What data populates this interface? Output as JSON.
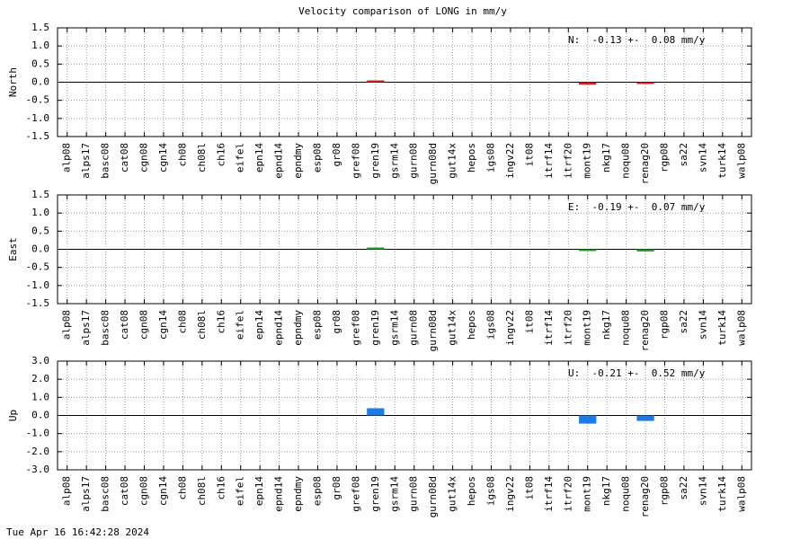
{
  "title": "Velocity comparison of LONG in mm/y",
  "timestamp": "Tue Apr 16 16:42:28 2024",
  "chart_data": [
    {
      "type": "bar",
      "ylabel": "North",
      "annotation": "N:  -0.13 +-  0.08 mm/y",
      "color": "#d42020",
      "grid": true,
      "categories": [
        "alp08",
        "alps17",
        "basc08",
        "cat08",
        "cgn08",
        "cgn14",
        "ch08",
        "ch08l",
        "ch16",
        "eifel",
        "epn14",
        "epnd14",
        "epndmy",
        "esp08",
        "gr08",
        "gref08",
        "gren19",
        "gsrm14",
        "gurn08",
        "gurn08d",
        "gut14x",
        "hepos",
        "igs08",
        "ingv22",
        "it08",
        "itrf14",
        "itrf20",
        "mont19",
        "nkg17",
        "noqu08",
        "renag20",
        "rgp08",
        "sa22",
        "svn14",
        "turk14",
        "walp08"
      ],
      "values": [
        null,
        null,
        null,
        null,
        null,
        null,
        null,
        null,
        null,
        null,
        null,
        null,
        null,
        null,
        null,
        null,
        0.03,
        null,
        null,
        null,
        null,
        null,
        null,
        null,
        null,
        null,
        null,
        -0.07,
        null,
        null,
        -0.04,
        null,
        null,
        null,
        null,
        null
      ],
      "ylim": [
        -1.5,
        1.5
      ],
      "yticks": [
        -1.5,
        {
          "value": -1.0,
          "label": "-1.0"
        },
        -0.5,
        {
          "value": 0,
          "label": "0.0"
        },
        0.5,
        {
          "value": 1.0,
          "label": "1.0"
        },
        1.5
      ]
    },
    {
      "type": "bar",
      "ylabel": "East",
      "annotation": "E:  -0.19 +-  0.07 mm/y",
      "color": "#22a022",
      "grid": true,
      "categories": [
        "alp08",
        "alps17",
        "basc08",
        "cat08",
        "cgn08",
        "cgn14",
        "ch08",
        "ch08l",
        "ch16",
        "eifel",
        "epn14",
        "epnd14",
        "epndmy",
        "esp08",
        "gr08",
        "gref08",
        "gren19",
        "gsrm14",
        "gurn08",
        "gurn08d",
        "gut14x",
        "hepos",
        "igs08",
        "ingv22",
        "it08",
        "itrf14",
        "itrf20",
        "mont19",
        "nkg17",
        "noqu08",
        "renag20",
        "rgp08",
        "sa22",
        "svn14",
        "turk14",
        "walp08"
      ],
      "values": [
        null,
        null,
        null,
        null,
        null,
        null,
        null,
        null,
        null,
        null,
        null,
        null,
        null,
        null,
        null,
        null,
        0.02,
        null,
        null,
        null,
        null,
        null,
        null,
        null,
        null,
        null,
        null,
        -0.04,
        null,
        null,
        -0.06,
        null,
        null,
        null,
        null,
        null
      ],
      "ylim": [
        -1.5,
        1.5
      ],
      "yticks": [
        -1.5,
        {
          "value": -1.0,
          "label": "-1.0"
        },
        -0.5,
        {
          "value": 0,
          "label": "0.0"
        },
        0.5,
        {
          "value": 1.0,
          "label": "1.0"
        },
        1.5
      ]
    },
    {
      "type": "bar",
      "ylabel": "Up",
      "annotation": "U:  -0.21 +-  0.52 mm/y",
      "color": "#1e7be6",
      "grid": true,
      "categories": [
        "alp08",
        "alps17",
        "basc08",
        "cat08",
        "cgn08",
        "cgn14",
        "ch08",
        "ch08l",
        "ch16",
        "eifel",
        "epn14",
        "epnd14",
        "epndmy",
        "esp08",
        "gr08",
        "gref08",
        "gren19",
        "gsrm14",
        "gurn08",
        "gurn08d",
        "gut14x",
        "hepos",
        "igs08",
        "ingv22",
        "it08",
        "itrf14",
        "itrf20",
        "mont19",
        "nkg17",
        "noqu08",
        "renag20",
        "rgp08",
        "sa22",
        "svn14",
        "turk14",
        "walp08"
      ],
      "values": [
        null,
        null,
        null,
        null,
        null,
        null,
        null,
        null,
        null,
        null,
        null,
        null,
        null,
        null,
        null,
        null,
        0.4,
        null,
        null,
        null,
        null,
        null,
        null,
        null,
        null,
        null,
        null,
        -0.45,
        null,
        null,
        -0.3,
        null,
        null,
        null,
        null,
        null
      ],
      "ylim": [
        -3,
        3
      ],
      "yticks": [
        {
          "value": -3,
          "label": "-3.0"
        },
        {
          "value": -2,
          "label": "-2.0"
        },
        {
          "value": -1,
          "label": "-1.0"
        },
        {
          "value": 0,
          "label": "0.0"
        },
        {
          "value": 1,
          "label": "1.0"
        },
        {
          "value": 2,
          "label": "2.0"
        },
        {
          "value": 3,
          "label": "3.0"
        }
      ]
    }
  ]
}
